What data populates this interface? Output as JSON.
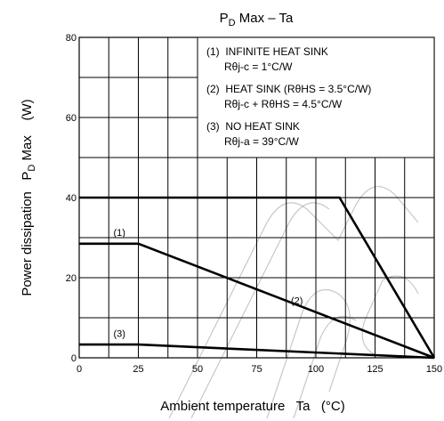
{
  "chart_data": {
    "type": "line",
    "title": {
      "pre": "P",
      "sub": "D",
      "post": " Max – Ta"
    },
    "xlabel": "Ambient temperature   Ta   (°C)",
    "ylabel": {
      "main": "Power dissipation   P",
      "sub": "D",
      "post": " Max    (W)"
    },
    "xlim": [
      0,
      150
    ],
    "ylim": [
      0,
      80
    ],
    "x_ticks": [
      0,
      25,
      50,
      75,
      100,
      125,
      150
    ],
    "y_ticks": [
      0,
      20,
      40,
      60,
      80
    ],
    "grid": true,
    "series": [
      {
        "name": "(1) INFINITE HEAT SINK",
        "x": [
          0,
          110,
          150
        ],
        "y": [
          40,
          40,
          0
        ]
      },
      {
        "name": "(2) HEAT SINK (RθHS = 3.5°C/W)",
        "x": [
          0,
          25,
          150
        ],
        "y": [
          28.5,
          28.5,
          0
        ]
      },
      {
        "name": "(3) NO HEAT SINK",
        "x": [
          0,
          25,
          150
        ],
        "y": [
          3.3,
          3.3,
          0
        ]
      }
    ],
    "curve_labels": [
      {
        "text": "(1)",
        "x": 17,
        "y": 30.5
      },
      {
        "text": "(2)",
        "x": 92,
        "y": 13.5
      },
      {
        "text": "(3)",
        "x": 17,
        "y": 5.2
      }
    ],
    "legend": {
      "placement": "top-right",
      "lines": [
        "(1)  INFINITE HEAT SINK",
        "      Rθj-c = 1°C/W",
        "(2)  HEAT SINK (RθHS = 3.5°C/W)",
        "      Rθj-c + RθHS = 4.5°C/W",
        "(3)  NO HEAT SINK",
        "      Rθj-a = 39°C/W"
      ]
    }
  }
}
